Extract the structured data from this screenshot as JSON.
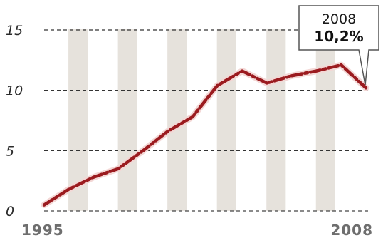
{
  "chart_data": {
    "type": "line",
    "x": [
      1995,
      1996,
      1997,
      1998,
      1999,
      2000,
      2001,
      2002,
      2003,
      2004,
      2005,
      2006,
      2007,
      2008
    ],
    "values": [
      0.5,
      1.8,
      2.8,
      3.5,
      5.0,
      6.6,
      7.8,
      10.4,
      11.6,
      10.6,
      11.2,
      11.6,
      12.1,
      10.2
    ],
    "ylim": [
      0,
      15
    ],
    "yticks": [
      "0",
      "5",
      "10",
      "15"
    ],
    "xtick_labels": [
      {
        "x": 1995,
        "label": "1995"
      },
      {
        "x": 2008,
        "label": "2008"
      }
    ],
    "grid": "horizontal dashed lines at y ticks; alternating vertical shaded bands per year",
    "line_color": "#9b1b1f",
    "band_color": "#e6e2dc",
    "annotation": {
      "x": 2008,
      "year_label": "2008",
      "value_label": "10,2%"
    }
  }
}
